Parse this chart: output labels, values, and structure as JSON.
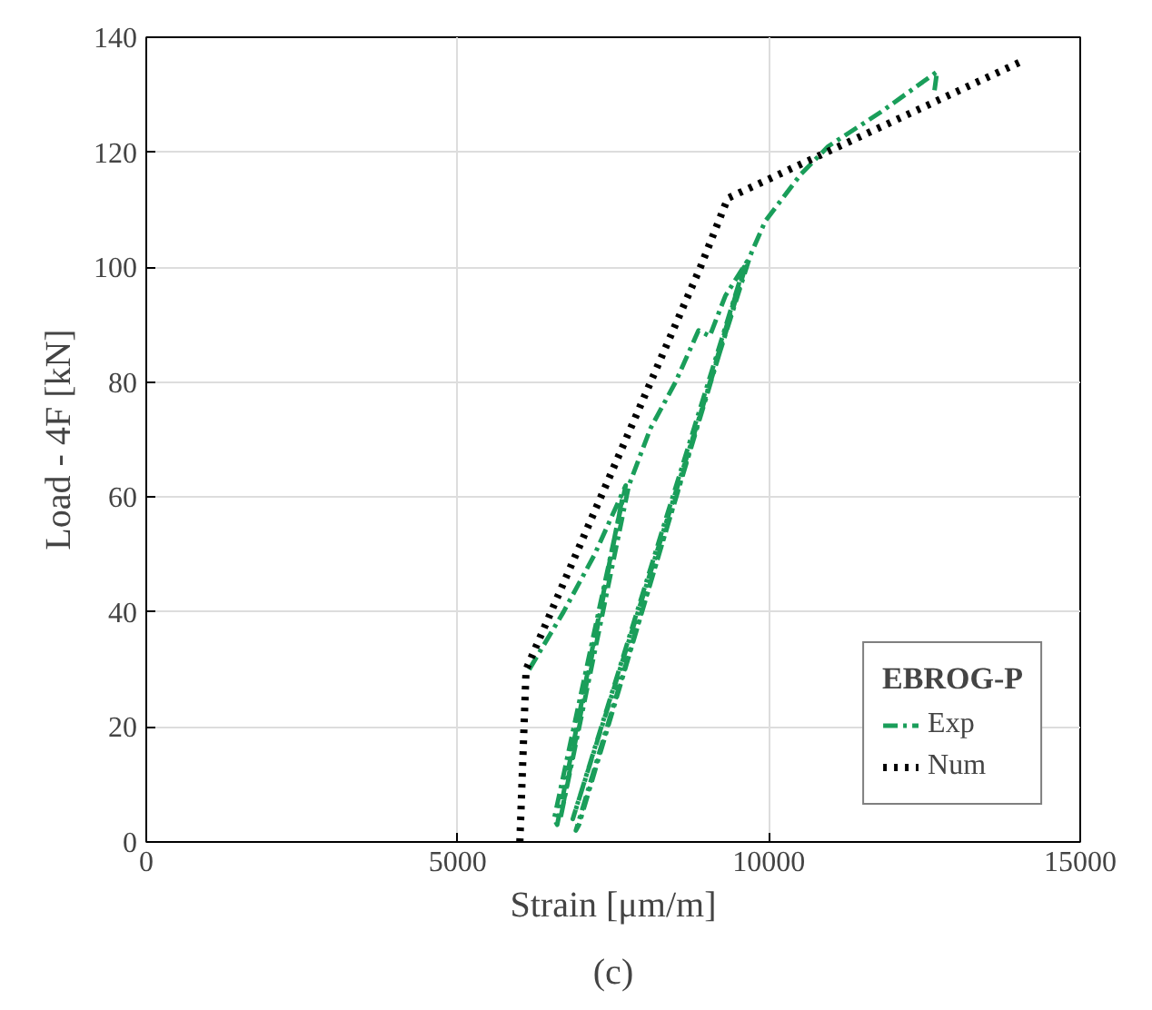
{
  "chart_data": {
    "type": "line",
    "xlabel": "Strain [μm/m]",
    "ylabel": "Load - 4F [kN]",
    "legend_title": "EBROG-P",
    "xlim": [
      0,
      15000
    ],
    "ylim": [
      0,
      140
    ],
    "xticks": [
      0,
      5000,
      10000,
      15000
    ],
    "yticks": [
      0,
      20,
      40,
      60,
      80,
      100,
      120,
      140
    ],
    "grid": true,
    "legend": "bottom right",
    "marker": "none",
    "annotations": [
      "(c)"
    ],
    "series": [
      {
        "name": "Exp",
        "color": "#1a9e5a",
        "line_style": "dashdot",
        "x": [
          6150,
          6700,
          7200,
          7700,
          6550,
          6600,
          7650,
          6650,
          7750,
          8100,
          8500,
          8870,
          9050,
          9300,
          9650,
          6900,
          6950,
          9600,
          6850,
          9700,
          9940,
          10500,
          10950,
          11800,
          12700,
          12650
        ],
        "values": [
          30,
          40,
          50,
          62,
          4,
          3,
          60,
          4,
          62,
          72,
          80,
          89,
          88,
          95,
          101,
          2,
          3,
          100,
          4,
          102,
          108,
          116,
          121,
          127,
          134,
          130
        ]
      },
      {
        "name": "Num",
        "color": "#000000",
        "line_style": "dotted",
        "x": [
          6000,
          6050,
          6100,
          6780,
          8900,
          9340,
          14100
        ],
        "values": [
          0,
          15,
          30,
          47,
          100,
          112,
          136
        ]
      }
    ]
  }
}
